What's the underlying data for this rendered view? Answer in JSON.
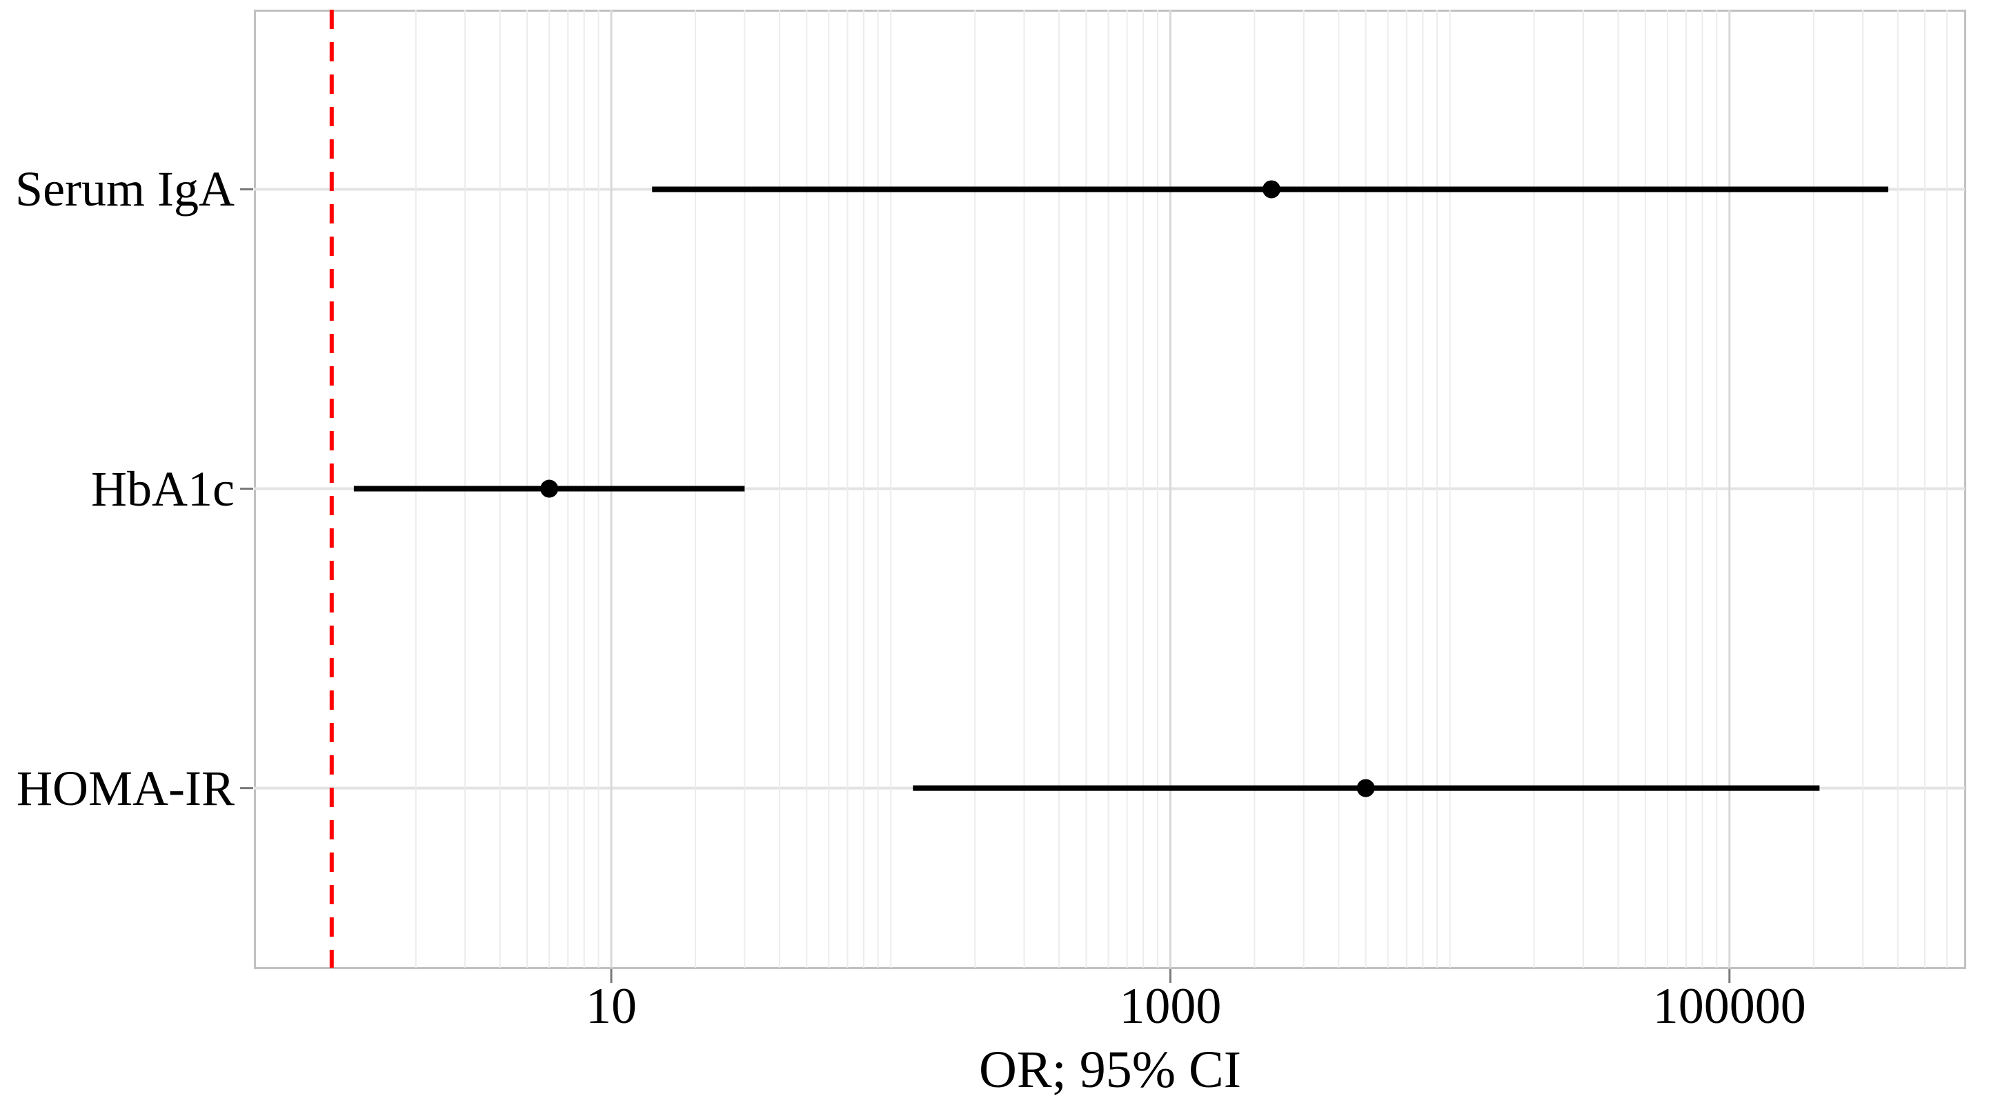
{
  "chart_data": {
    "type": "scatter",
    "subtype": "forest-plot",
    "title": "",
    "xlabel": "OR; 95% CI",
    "ylabel": "",
    "x_axis": {
      "scale": "log10",
      "tick_values": [
        10,
        1000,
        100000
      ],
      "tick_labels": [
        "10",
        "1000",
        "100000"
      ],
      "approx_range": [
        0.53,
        700000
      ],
      "grid": true,
      "minor_grid": "log minors 2-9 per decade"
    },
    "reference_line": {
      "value": 1,
      "style": "dashed",
      "color": "#FF0000",
      "meaning": "null effect OR = 1"
    },
    "rows": [
      {
        "label": "Serum IgA",
        "or": 2300,
        "ci_low": 14,
        "ci_high": 370000
      },
      {
        "label": "HbA1c",
        "or": 6,
        "ci_low": 1.2,
        "ci_high": 30
      },
      {
        "label": "HOMA-IR",
        "or": 5000,
        "ci_low": 120,
        "ci_high": 210000
      }
    ],
    "marker": {
      "shape": "circle",
      "color": "#000000"
    },
    "ci_line_color": "#000000",
    "legend": null,
    "background": "#ffffff"
  }
}
